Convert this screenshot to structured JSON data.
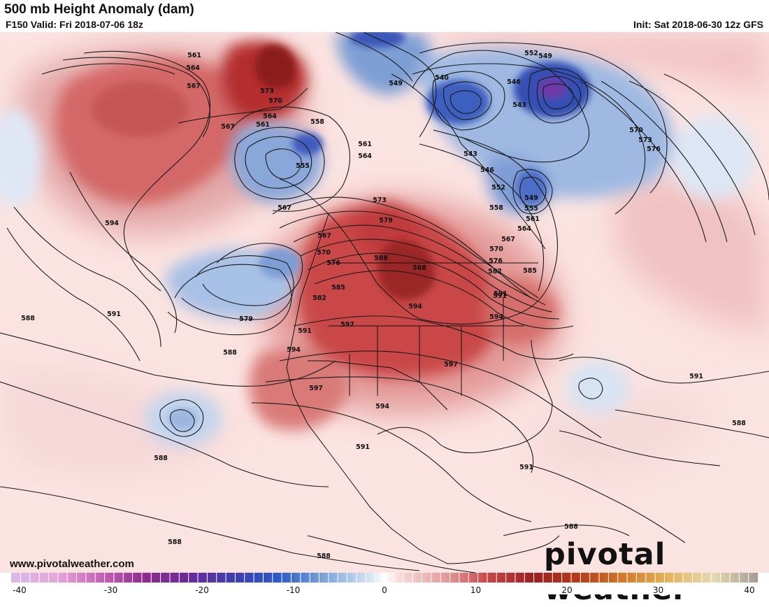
{
  "header": {
    "title": "500 mb Height Anomaly (dam)",
    "valid": "F150 Valid: Fri 2018-07-06 18z",
    "init": "Init: Sat 2018-06-30 12z GFS"
  },
  "footer": {
    "website": "www.pivotalweather.com",
    "logo_text": "pivotal weather"
  },
  "colorbar": {
    "min": -40,
    "max": 40,
    "tick_labels": [
      "-40",
      "-30",
      "-20",
      "-10",
      "0",
      "10",
      "20",
      "30",
      "40"
    ]
  },
  "map": {
    "contour_labels": [
      {
        "text": "561"
      },
      {
        "text": "564"
      },
      {
        "text": "567"
      },
      {
        "text": "573"
      },
      {
        "text": "570"
      },
      {
        "text": "564"
      },
      {
        "text": "561"
      },
      {
        "text": "567"
      },
      {
        "text": "558"
      },
      {
        "text": "555"
      },
      {
        "text": "561"
      },
      {
        "text": "564"
      },
      {
        "text": "567"
      },
      {
        "text": "573"
      },
      {
        "text": "579"
      },
      {
        "text": "567"
      },
      {
        "text": "570"
      },
      {
        "text": "576"
      },
      {
        "text": "588"
      },
      {
        "text": "585"
      },
      {
        "text": "582"
      },
      {
        "text": "579"
      },
      {
        "text": "591"
      },
      {
        "text": "597"
      },
      {
        "text": "594"
      },
      {
        "text": "594"
      },
      {
        "text": "591"
      },
      {
        "text": "588"
      },
      {
        "text": "594"
      },
      {
        "text": "588"
      },
      {
        "text": "597"
      },
      {
        "text": "594"
      },
      {
        "text": "591"
      },
      {
        "text": "588"
      },
      {
        "text": "588"
      },
      {
        "text": "597"
      },
      {
        "text": "594"
      },
      {
        "text": "591"
      },
      {
        "text": "591"
      },
      {
        "text": "588"
      },
      {
        "text": "591"
      },
      {
        "text": "588"
      },
      {
        "text": "549"
      },
      {
        "text": "540"
      },
      {
        "text": "546"
      },
      {
        "text": "543"
      },
      {
        "text": "552"
      },
      {
        "text": "549"
      },
      {
        "text": "543"
      },
      {
        "text": "546"
      },
      {
        "text": "552"
      },
      {
        "text": "549"
      },
      {
        "text": "555"
      },
      {
        "text": "558"
      },
      {
        "text": "561"
      },
      {
        "text": "564"
      },
      {
        "text": "567"
      },
      {
        "text": "570"
      },
      {
        "text": "576"
      },
      {
        "text": "582"
      },
      {
        "text": "585"
      },
      {
        "text": "570"
      },
      {
        "text": "573"
      },
      {
        "text": "576"
      },
      {
        "text": "591"
      },
      {
        "text": "588"
      },
      {
        "text": "588"
      }
    ]
  }
}
